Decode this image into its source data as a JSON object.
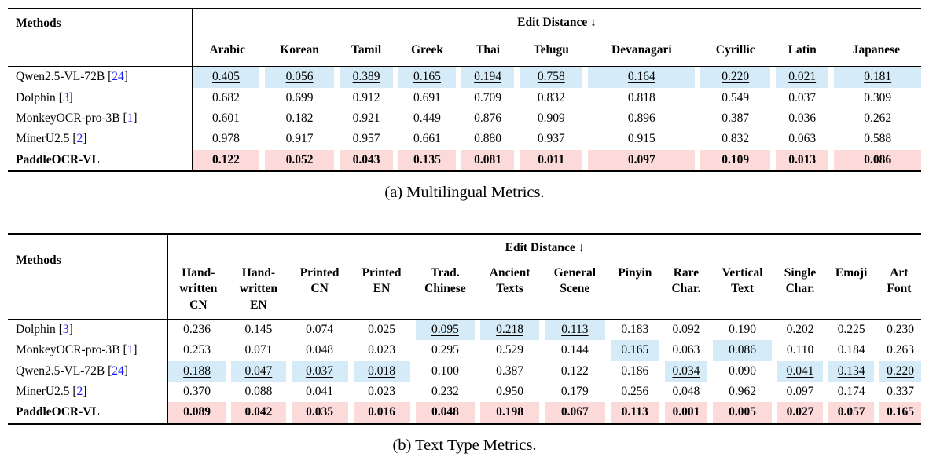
{
  "punct": {
    "cite_open": "[",
    "cite_close": "]"
  },
  "colors": {
    "highlight_blue": "#d5ecf8",
    "highlight_pink": "#fcdada",
    "cite_blue": "#1a1aee"
  },
  "tables": [
    {
      "id": "a",
      "caption": "(a) Multilingual Metrics.",
      "methods_header": "Methods",
      "group_header": "Edit Distance ↓",
      "columns": [
        "Arabic",
        "Korean",
        "Tamil",
        "Greek",
        "Thai",
        "Telugu",
        "Devanagari",
        "Cyrillic",
        "Latin",
        "Japanese"
      ],
      "rows": [
        {
          "name": "Qwen2.5-VL-72B",
          "cite": "24",
          "bold": false,
          "row_highlight": "blue",
          "row_underline": true,
          "cell_marks": [],
          "values": [
            "0.405",
            "0.056",
            "0.389",
            "0.165",
            "0.194",
            "0.758",
            "0.164",
            "0.220",
            "0.021",
            "0.181"
          ]
        },
        {
          "name": "Dolphin",
          "cite": "3",
          "bold": false,
          "row_highlight": null,
          "row_underline": false,
          "cell_marks": [],
          "values": [
            "0.682",
            "0.699",
            "0.912",
            "0.691",
            "0.709",
            "0.832",
            "0.818",
            "0.549",
            "0.037",
            "0.309"
          ]
        },
        {
          "name": "MonkeyOCR-pro-3B",
          "cite": "1",
          "bold": false,
          "row_highlight": null,
          "row_underline": false,
          "cell_marks": [],
          "values": [
            "0.601",
            "0.182",
            "0.921",
            "0.449",
            "0.876",
            "0.909",
            "0.896",
            "0.387",
            "0.036",
            "0.262"
          ]
        },
        {
          "name": "MinerU2.5",
          "cite": "2",
          "bold": false,
          "row_highlight": null,
          "row_underline": false,
          "cell_marks": [],
          "values": [
            "0.978",
            "0.917",
            "0.957",
            "0.661",
            "0.880",
            "0.937",
            "0.915",
            "0.832",
            "0.063",
            "0.588"
          ]
        },
        {
          "name": "PaddleOCR-VL",
          "cite": null,
          "bold": true,
          "row_highlight": "pink",
          "row_underline": false,
          "cell_marks": [],
          "values": [
            "0.122",
            "0.052",
            "0.043",
            "0.135",
            "0.081",
            "0.011",
            "0.097",
            "0.109",
            "0.013",
            "0.086"
          ]
        }
      ]
    },
    {
      "id": "b",
      "caption": "(b) Text Type Metrics.",
      "methods_header": "Methods",
      "group_header": "Edit Distance ↓",
      "columns": [
        "Hand-\nwritten\nCN",
        "Hand-\nwritten\nEN",
        "Printed\nCN",
        "Printed\nEN",
        "Trad.\nChinese",
        "Ancient\nTexts",
        "General\nScene",
        "Pinyin",
        "Rare\nChar.",
        "Vertical\nText",
        "Single\nChar.",
        "Emoji",
        "Art\nFont"
      ],
      "rows": [
        {
          "name": "Dolphin",
          "cite": "3",
          "bold": false,
          "row_highlight": null,
          "row_underline": false,
          "cell_marks": [
            4,
            5,
            6
          ],
          "values": [
            "0.236",
            "0.145",
            "0.074",
            "0.025",
            "0.095",
            "0.218",
            "0.113",
            "0.183",
            "0.092",
            "0.190",
            "0.202",
            "0.225",
            "0.230"
          ]
        },
        {
          "name": "MonkeyOCR-pro-3B",
          "cite": "1",
          "bold": false,
          "row_highlight": null,
          "row_underline": false,
          "cell_marks": [
            7,
            9
          ],
          "values": [
            "0.253",
            "0.071",
            "0.048",
            "0.023",
            "0.295",
            "0.529",
            "0.144",
            "0.165",
            "0.063",
            "0.086",
            "0.110",
            "0.184",
            "0.263"
          ]
        },
        {
          "name": "Qwen2.5-VL-72B",
          "cite": "24",
          "bold": false,
          "row_highlight": null,
          "row_underline": false,
          "cell_marks": [
            0,
            1,
            2,
            3,
            8,
            10,
            11,
            12
          ],
          "values": [
            "0.188",
            "0.047",
            "0.037",
            "0.018",
            "0.100",
            "0.387",
            "0.122",
            "0.186",
            "0.034",
            "0.090",
            "0.041",
            "0.134",
            "0.220"
          ]
        },
        {
          "name": "MinerU2.5",
          "cite": "2",
          "bold": false,
          "row_highlight": null,
          "row_underline": false,
          "cell_marks": [],
          "values": [
            "0.370",
            "0.088",
            "0.041",
            "0.023",
            "0.232",
            "0.950",
            "0.179",
            "0.256",
            "0.048",
            "0.962",
            "0.097",
            "0.174",
            "0.337"
          ]
        },
        {
          "name": "PaddleOCR-VL",
          "cite": null,
          "bold": true,
          "row_highlight": "pink",
          "row_underline": false,
          "cell_marks": [],
          "values": [
            "0.089",
            "0.042",
            "0.035",
            "0.016",
            "0.048",
            "0.198",
            "0.067",
            "0.113",
            "0.001",
            "0.005",
            "0.027",
            "0.057",
            "0.165"
          ]
        }
      ]
    }
  ]
}
